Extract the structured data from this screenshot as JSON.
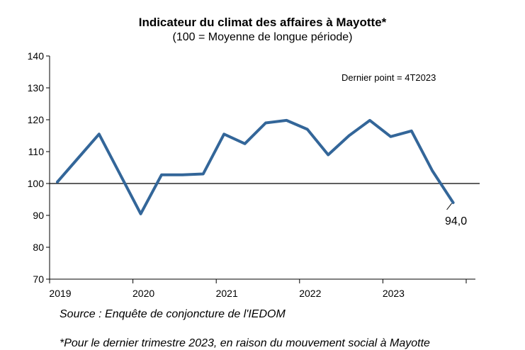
{
  "chart_data": {
    "type": "line",
    "title": "Indicateur du climat des affaires à Mayotte*",
    "subtitle": "(100 = Moyenne de longue période)",
    "xlabel": "",
    "ylabel": "",
    "ylim": [
      70,
      140
    ],
    "yticks": [
      70,
      80,
      90,
      100,
      110,
      120,
      130,
      140
    ],
    "xtick_labels": [
      "2019",
      "2020",
      "2021",
      "2022",
      "2023"
    ],
    "reference_line": 100,
    "grid": false,
    "series": [
      {
        "x": [
          "1T2019",
          "2T2019",
          "3T2019",
          "4T2019",
          "1T2020",
          "2T2020",
          "3T2020",
          "4T2020",
          "1T2021",
          "2T2021",
          "3T2021",
          "4T2021",
          "1T2022",
          "2T2022",
          "3T2022",
          "4T2022",
          "1T2023",
          "2T2023",
          "3T2023",
          "4T2023"
        ],
        "values": [
          100.5,
          108,
          115.5,
          103,
          90.5,
          102.7,
          102.7,
          103,
          115.5,
          112.5,
          119,
          119.8,
          117,
          109,
          115,
          119.8,
          114.7,
          116.5,
          104,
          94.0
        ],
        "color": "#336699"
      }
    ],
    "annotations": {
      "last_point_note": "Dernier point  = 4T2023",
      "last_value_label": "94,0"
    }
  },
  "source": "Source : Enquête de conjoncture de l'IEDOM",
  "footnote": "*Pour le dernier trimestre 2023, en raison du mouvement social à Mayotte"
}
